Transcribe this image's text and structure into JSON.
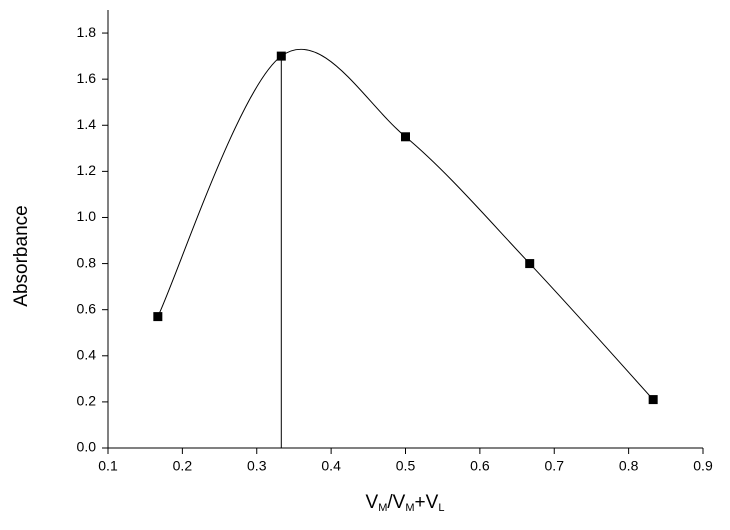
{
  "chart_data": {
    "type": "line",
    "xlabel": [
      {
        "text": "V",
        "sub": "M"
      },
      {
        "text": "/V",
        "sub": "M"
      },
      {
        "text": "+V",
        "sub": "L"
      }
    ],
    "ylabel": "Absorbance",
    "x": [
      0.167,
      0.333,
      0.5,
      0.667,
      0.833
    ],
    "series": [
      {
        "name": "Absorbance",
        "color": "#000000",
        "marker": "square",
        "values": [
          0.57,
          1.7,
          1.35,
          0.8,
          0.21
        ]
      }
    ],
    "marker_line_x": 0.333,
    "xlim": [
      0.1,
      0.9
    ],
    "xticks": [
      0.1,
      0.2,
      0.3,
      0.4,
      0.5,
      0.6,
      0.7,
      0.8,
      0.9
    ],
    "ylim": [
      0,
      1.9
    ],
    "yticks": [
      {
        "value": 0,
        "label": "0.0"
      },
      0.2,
      0.4,
      0.6,
      0.8,
      {
        "value": 1,
        "label": "1.0"
      },
      1.2,
      1.4,
      1.6,
      1.8
    ],
    "grid": false
  }
}
